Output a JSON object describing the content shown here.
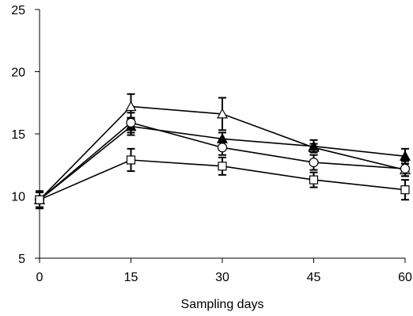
{
  "chart_data": {
    "type": "line",
    "title": "",
    "xlabel": "Sampling days",
    "ylabel": "",
    "x": [
      0,
      15,
      30,
      45,
      60
    ],
    "xlim": [
      0,
      60
    ],
    "ylim": [
      5,
      25
    ],
    "x_ticks": [
      "0",
      "15",
      "30",
      "45",
      "60"
    ],
    "y_ticks": [
      "5",
      "10",
      "15",
      "20",
      "25"
    ],
    "grid": false,
    "legend": "none",
    "series": [
      {
        "marker": "open-triangle",
        "values": [
          9.7,
          17.2,
          16.6,
          13.9,
          12.1
        ],
        "errors": [
          0.6,
          1.0,
          1.3,
          0.3,
          0.5
        ]
      },
      {
        "marker": "filled-triangle",
        "values": [
          9.7,
          15.6,
          14.6,
          14.0,
          13.2
        ],
        "errors": [
          0.6,
          0.7,
          0.5,
          0.5,
          0.6
        ]
      },
      {
        "marker": "open-circle",
        "values": [
          9.7,
          15.9,
          13.9,
          12.7,
          12.2
        ],
        "errors": [
          0.6,
          0.8,
          0.6,
          0.6,
          0.6
        ]
      },
      {
        "marker": "open-square",
        "values": [
          9.7,
          12.9,
          12.4,
          11.3,
          10.5
        ],
        "errors": [
          0.7,
          0.9,
          0.7,
          0.6,
          0.8
        ]
      }
    ],
    "colors": {
      "line": "#000000",
      "marker_fill_open": "#ffffff",
      "marker_fill_filled": "#000000"
    }
  }
}
